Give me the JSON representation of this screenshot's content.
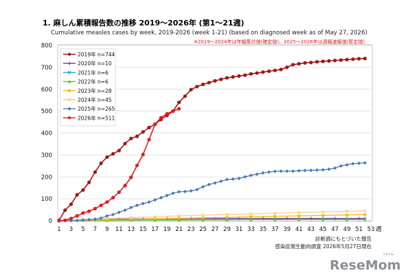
{
  "title": "1. 麻しん累積報告数の推移  2019〜2026年 (第1〜21週)",
  "subtitle": "Cumulative measles cases by week, 2019-2026 (week 1-21)  (based on diagnosed week as of May 27, 2026)",
  "note": "※2019〜2024年は年報集計値(確定値)、2025〜2026年は週報速報値(暫定値)",
  "footnotes": [
    "診断週にもとづいた報告",
    "感染症発生動向調査 2026年5月27日現在"
  ],
  "logo": {
    "text": "ReseMom",
    "small": "リセマム",
    "color": "#8a8f96"
  },
  "chart_data": {
    "type": "line",
    "xlabel_suffix": "週",
    "xlim": [
      1,
      53
    ],
    "ylim": [
      0,
      800
    ],
    "yticks": [
      0,
      100,
      200,
      300,
      400,
      500,
      600,
      700,
      800
    ],
    "xticks": [
      1,
      3,
      5,
      7,
      9,
      11,
      13,
      15,
      17,
      19,
      21,
      23,
      25,
      27,
      29,
      31,
      33,
      35,
      37,
      39,
      41,
      43,
      45,
      47,
      49,
      51,
      53
    ],
    "grid": "horizontal",
    "legend_position": "top-left",
    "series": [
      {
        "name": "2019年 n=744",
        "color": "#a31515",
        "marker": "circle",
        "x": [
          1,
          2,
          3,
          4,
          5,
          6,
          7,
          8,
          9,
          10,
          11,
          12,
          13,
          14,
          15,
          16,
          17,
          18,
          19,
          20,
          21,
          22,
          23,
          24,
          25,
          26,
          27,
          28,
          29,
          30,
          31,
          32,
          33,
          34,
          35,
          36,
          37,
          38,
          39,
          40,
          41,
          42,
          43,
          44,
          45,
          46,
          47,
          48,
          49,
          50,
          51,
          52
        ],
        "values": [
          2,
          48,
          75,
          118,
          140,
          175,
          222,
          262,
          290,
          305,
          320,
          352,
          375,
          385,
          405,
          425,
          440,
          462,
          480,
          500,
          540,
          568,
          598,
          612,
          622,
          630,
          638,
          645,
          652,
          656,
          660,
          664,
          670,
          674,
          678,
          682,
          686,
          690,
          700,
          712,
          716,
          720,
          722,
          725,
          727,
          729,
          731,
          733,
          735,
          737,
          739,
          740
        ]
      },
      {
        "name": "2020年 n=10",
        "color": "#6a3aa0",
        "marker": "plus",
        "x": [
          1,
          3,
          5,
          7,
          9,
          11,
          13,
          15,
          17,
          19,
          21,
          23,
          25,
          27,
          29,
          31,
          33,
          35,
          37,
          39,
          41,
          43,
          45,
          47,
          49,
          51,
          52
        ],
        "values": [
          1,
          2,
          4,
          5,
          6,
          7,
          8,
          8,
          9,
          9,
          9,
          10,
          10,
          10,
          10,
          10,
          10,
          10,
          10,
          10,
          10,
          10,
          10,
          10,
          10,
          10,
          10
        ]
      },
      {
        "name": "2021年 n=6",
        "color": "#2aa3d8",
        "marker": "cross",
        "x": [
          1,
          5,
          9,
          13,
          17,
          21,
          25,
          29,
          33,
          37,
          41,
          45,
          49,
          52
        ],
        "values": [
          0,
          1,
          2,
          3,
          4,
          4,
          5,
          5,
          5,
          6,
          6,
          6,
          6,
          6
        ]
      },
      {
        "name": "2022年 n=6",
        "color": "#6dbb3a",
        "marker": "triangle",
        "x": [
          1,
          5,
          9,
          13,
          17,
          21,
          25,
          29,
          33,
          37,
          41,
          45,
          49,
          52
        ],
        "values": [
          0,
          1,
          1,
          2,
          3,
          3,
          4,
          4,
          5,
          5,
          6,
          6,
          6,
          6
        ]
      },
      {
        "name": "2023年 n=28",
        "color": "#f2b900",
        "marker": "circle",
        "x": [
          1,
          5,
          9,
          13,
          17,
          21,
          25,
          29,
          33,
          37,
          41,
          45,
          49,
          52
        ],
        "values": [
          0,
          2,
          4,
          6,
          9,
          11,
          13,
          15,
          18,
          20,
          22,
          24,
          26,
          28
        ]
      },
      {
        "name": "2024年 n=45",
        "color": "#f5d08a",
        "marker": "cross",
        "x": [
          1,
          5,
          9,
          13,
          17,
          21,
          25,
          29,
          33,
          37,
          41,
          45,
          49,
          52
        ],
        "values": [
          0,
          4,
          9,
          14,
          18,
          22,
          25,
          28,
          31,
          34,
          37,
          40,
          43,
          45
        ]
      },
      {
        "name": "2025年 n=265",
        "color": "#4a78b0",
        "marker": "diamond",
        "x": [
          1,
          2,
          3,
          4,
          5,
          6,
          7,
          8,
          9,
          10,
          11,
          12,
          13,
          14,
          15,
          16,
          17,
          18,
          19,
          20,
          21,
          22,
          23,
          24,
          25,
          26,
          27,
          28,
          29,
          30,
          31,
          32,
          33,
          34,
          35,
          36,
          37,
          38,
          39,
          40,
          41,
          42,
          43,
          44,
          45,
          46,
          47,
          48,
          49,
          50,
          51,
          52
        ],
        "values": [
          0,
          0,
          0,
          1,
          3,
          5,
          7,
          12,
          22,
          28,
          38,
          48,
          60,
          70,
          78,
          85,
          95,
          105,
          115,
          125,
          132,
          133,
          136,
          142,
          155,
          165,
          172,
          180,
          188,
          190,
          193,
          200,
          207,
          212,
          218,
          222,
          225,
          226,
          226,
          226,
          228,
          229,
          230,
          231,
          232,
          235,
          240,
          250,
          255,
          260,
          262,
          264
        ]
      },
      {
        "name": "2026年 n=511",
        "color": "#e31a1c",
        "marker": "circle",
        "x": [
          1,
          2,
          3,
          4,
          5,
          6,
          7,
          8,
          9,
          10,
          11,
          12,
          13,
          14,
          15,
          16,
          17,
          18,
          19,
          20,
          21
        ],
        "values": [
          0,
          2,
          10,
          22,
          35,
          43,
          55,
          70,
          85,
          105,
          130,
          160,
          198,
          252,
          302,
          370,
          440,
          470,
          488,
          500,
          511
        ]
      }
    ]
  }
}
